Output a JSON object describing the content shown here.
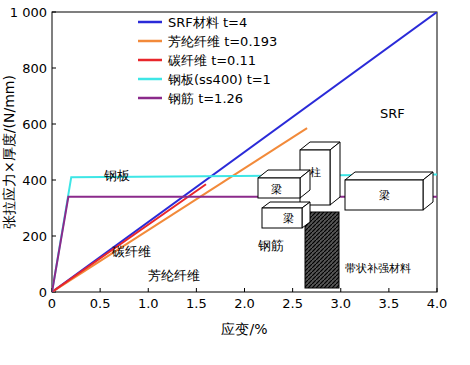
{
  "chart_data": {
    "type": "line",
    "x_label": "应变/%",
    "y_label": "张拉应力×厚度/(N/mm)",
    "xlim": [
      0,
      4
    ],
    "ylim": [
      0,
      1000
    ],
    "xticks": [
      0,
      {
        "value": 0.5,
        "label": "0.5"
      },
      {
        "value": 1,
        "label": "1.0"
      },
      {
        "value": 1.5,
        "label": "1.5"
      },
      {
        "value": 2,
        "label": "2.0"
      },
      {
        "value": 2.5,
        "label": "2.5"
      },
      {
        "value": 3,
        "label": "3.0"
      },
      {
        "value": 3.5,
        "label": "3.5"
      },
      {
        "value": 4,
        "label": "4.0"
      }
    ],
    "yticks": [
      0,
      200,
      400,
      600,
      800,
      {
        "value": 1000,
        "label": "1 000"
      }
    ],
    "grid": false,
    "legend": "top-left",
    "series": [
      {
        "name": "SRF材料  t=4",
        "color": "#2a2ad8",
        "x": [
          0,
          4
        ],
        "values": [
          0,
          1000
        ]
      },
      {
        "name": "芳纶纤维  t=0.193",
        "color": "#f28a3a",
        "x": [
          0,
          2.65
        ],
        "values": [
          0,
          585
        ]
      },
      {
        "name": "碳纤维  t=0.11",
        "color": "#e8262b",
        "x": [
          0,
          1.6
        ],
        "values": [
          0,
          385
        ]
      },
      {
        "name": "钢板(ss400)  t=1",
        "color": "#3ee6e6",
        "x": [
          0,
          0.2,
          4
        ],
        "values": [
          0,
          410,
          420
        ]
      },
      {
        "name": "钢筋  t=1.26",
        "color": "#8b2a8b",
        "x": [
          0,
          0.17,
          4
        ],
        "values": [
          0,
          340,
          340
        ]
      }
    ],
    "annotations": [
      "SRF",
      "钢板",
      "碳纤维",
      "钢筋",
      "芳纶纤维"
    ],
    "inset_labels": [
      "梁",
      "柱",
      "梁",
      "梁",
      "带状补强材料"
    ]
  }
}
